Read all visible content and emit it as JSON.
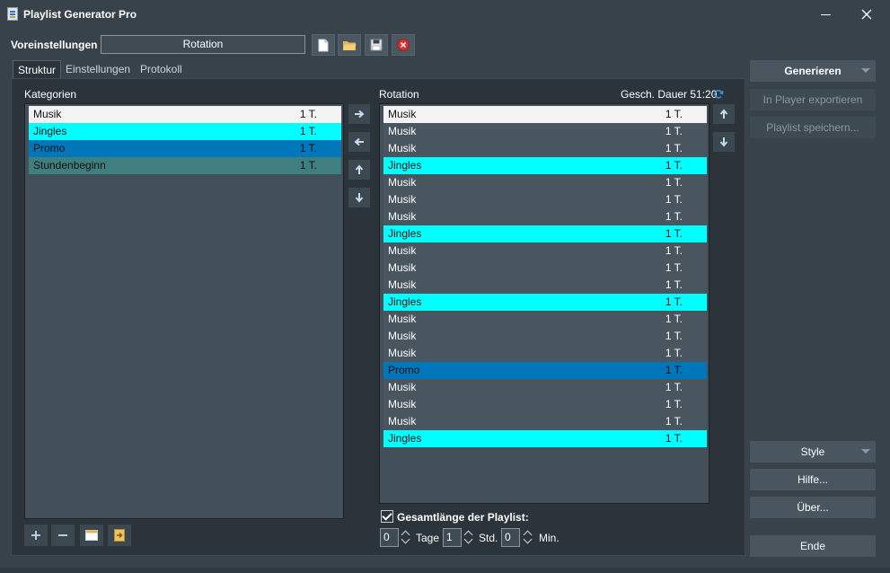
{
  "window": {
    "title": "Playlist Generator Pro"
  },
  "preset": {
    "label": "Voreinstellungen",
    "value": "Rotation"
  },
  "toolbar": [
    "new-file-icon",
    "open-folder-icon",
    "save-icon",
    "delete-icon"
  ],
  "tabs": [
    {
      "label": "Struktur",
      "active": true
    },
    {
      "label": "Einstellungen",
      "active": false
    },
    {
      "label": "Protokoll",
      "active": false
    }
  ],
  "categories": {
    "label": "Kategorien",
    "items": [
      {
        "name": "Musik",
        "count": "1 T.",
        "color": "#f3f3f3"
      },
      {
        "name": "Jingles",
        "count": "1 T.",
        "color": "#00ffff"
      },
      {
        "name": "Promo",
        "count": "1 T.",
        "color": "#0077bb"
      },
      {
        "name": "Stundenbeginn",
        "count": "1 T.",
        "color": "#3f7f7f"
      }
    ]
  },
  "rotation": {
    "label": "Rotation",
    "duration": "Gesch. Dauer 51:20",
    "items": [
      {
        "name": "Musik",
        "count": "1 T."
      },
      {
        "name": "Musik",
        "count": "1 T."
      },
      {
        "name": "Musik",
        "count": "1 T."
      },
      {
        "name": "Jingles",
        "count": "1 T."
      },
      {
        "name": "Musik",
        "count": "1 T."
      },
      {
        "name": "Musik",
        "count": "1 T."
      },
      {
        "name": "Musik",
        "count": "1 T."
      },
      {
        "name": "Jingles",
        "count": "1 T."
      },
      {
        "name": "Musik",
        "count": "1 T."
      },
      {
        "name": "Musik",
        "count": "1 T."
      },
      {
        "name": "Musik",
        "count": "1 T."
      },
      {
        "name": "Jingles",
        "count": "1 T."
      },
      {
        "name": "Musik",
        "count": "1 T."
      },
      {
        "name": "Musik",
        "count": "1 T."
      },
      {
        "name": "Musik",
        "count": "1 T."
      },
      {
        "name": "Promo",
        "count": "1 T."
      },
      {
        "name": "Musik",
        "count": "1 T."
      },
      {
        "name": "Musik",
        "count": "1 T."
      },
      {
        "name": "Musik",
        "count": "1 T."
      },
      {
        "name": "Jingles",
        "count": "1 T."
      }
    ]
  },
  "total_length": {
    "label": "Gesamtlänge der Playlist:",
    "checked": true,
    "days": "0",
    "days_label": "Tage",
    "hours": "1",
    "hours_label": "Std.",
    "minutes": "0",
    "minutes_label": "Min."
  },
  "actions": {
    "generate": "Generieren",
    "export": "In Player exportieren",
    "save_playlist": "Playlist speichern...",
    "style": "Style",
    "help": "Hilfe...",
    "about": "Über...",
    "exit": "Ende"
  }
}
